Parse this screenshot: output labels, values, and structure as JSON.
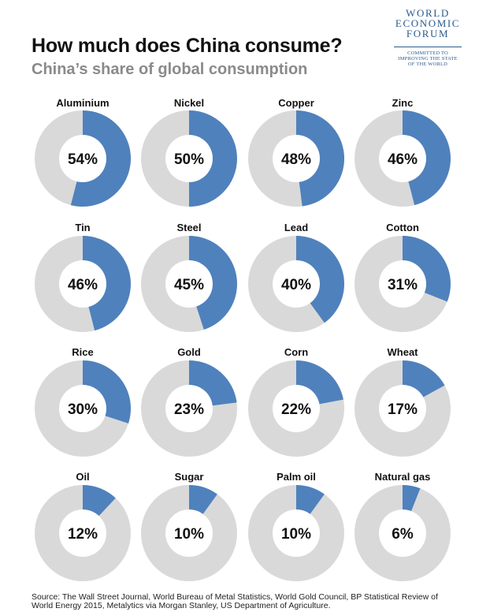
{
  "header": {
    "title": "How much does China consume?",
    "subtitle": "China’s share of global consumption"
  },
  "logo": {
    "lines": [
      "WORLD",
      "ECONOMIC",
      "FORUM"
    ],
    "tagline": [
      "COMMITTED TO",
      "IMPROVING THE STATE",
      "OF THE WORLD"
    ]
  },
  "colors": {
    "china": "#4f81bd",
    "rest": "#d9d9d9",
    "hole": "#ffffff"
  },
  "chart_data": {
    "type": "pie",
    "title": "How much does China consume?",
    "subtitle": "China’s share of global consumption",
    "unit": "%",
    "items": [
      {
        "label": "Aluminium",
        "value": 54,
        "display": "54%"
      },
      {
        "label": "Nickel",
        "value": 50,
        "display": "50%"
      },
      {
        "label": "Copper",
        "value": 48,
        "display": "48%"
      },
      {
        "label": "Zinc",
        "value": 46,
        "display": "46%"
      },
      {
        "label": "Tin",
        "value": 46,
        "display": "46%"
      },
      {
        "label": "Steel",
        "value": 45,
        "display": "45%"
      },
      {
        "label": "Lead",
        "value": 40,
        "display": "40%"
      },
      {
        "label": "Cotton",
        "value": 31,
        "display": "31%"
      },
      {
        "label": "Rice",
        "value": 30,
        "display": "30%"
      },
      {
        "label": "Gold",
        "value": 23,
        "display": "23%"
      },
      {
        "label": "Corn",
        "value": 22,
        "display": "22%"
      },
      {
        "label": "Wheat",
        "value": 17,
        "display": "17%"
      },
      {
        "label": "Oil",
        "value": 12,
        "display": "12%"
      },
      {
        "label": "Sugar",
        "value": 10,
        "display": "10%"
      },
      {
        "label": "Palm oil",
        "value": 10,
        "display": "10%"
      },
      {
        "label": "Natural gas",
        "value": 6,
        "display": "6%"
      }
    ]
  },
  "footer": {
    "source_line1": "Source: The Wall Street Journal, World Bureau of Metal Statistics, World Gold Council, BP Statistical Review of",
    "source_line2": "World Energy 2015, Metalytics via Morgan Stanley, US Department of Agriculture."
  }
}
